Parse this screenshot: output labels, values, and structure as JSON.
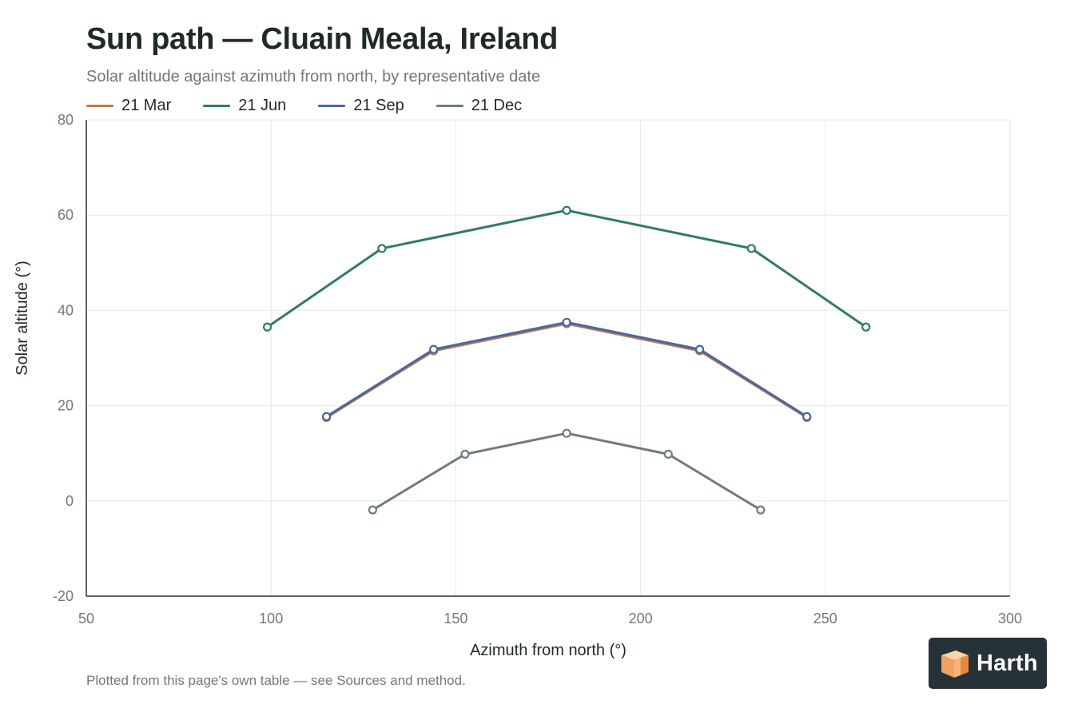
{
  "title": "Sun path — Cluain Meala, Ireland",
  "subtitle": "Solar altitude against azimuth from north, by representative date",
  "footnote": "Plotted from this page's own table — see Sources and method.",
  "logo": {
    "text": "Harth",
    "icon": "cube-logo-icon"
  },
  "colors": {
    "21 Mar": "#b87a4b",
    "21 Jun": "#2e7b6e",
    "21 Sep": "#4a67a0",
    "21 Dec": "#6f7d78"
  },
  "chart_data": {
    "type": "line",
    "xlabel": "Azimuth from north (°)",
    "ylabel": "Solar altitude (°)",
    "xlim": [
      50,
      300
    ],
    "ylim": [
      -20,
      80
    ],
    "xticks": [
      50,
      100,
      150,
      200,
      250,
      300
    ],
    "yticks": [
      -20,
      0,
      20,
      40,
      60,
      80
    ],
    "grid": true,
    "legend": "top-left",
    "series": [
      {
        "name": "21 Mar",
        "color": "#b87a4b",
        "points": [
          [
            115,
            17.5
          ],
          [
            144,
            31.5
          ],
          [
            180,
            37.2
          ],
          [
            216,
            31.5
          ],
          [
            245,
            17.5
          ]
        ]
      },
      {
        "name": "21 Jun",
        "color": "#2e7b6e",
        "points": [
          [
            99,
            36.5
          ],
          [
            130,
            53.0
          ],
          [
            180,
            61.0
          ],
          [
            230,
            53.0
          ],
          [
            261,
            36.5
          ]
        ]
      },
      {
        "name": "21 Sep",
        "color": "#4a67a0",
        "points": [
          [
            115,
            17.7
          ],
          [
            144,
            31.8
          ],
          [
            180,
            37.5
          ],
          [
            216,
            31.8
          ],
          [
            245,
            17.7
          ]
        ]
      },
      {
        "name": "21 Dec",
        "color": "#6f7d78",
        "points": [
          [
            127.5,
            -1.9
          ],
          [
            152.5,
            9.8
          ],
          [
            180,
            14.2
          ],
          [
            207.5,
            9.8
          ],
          [
            232.5,
            -1.9
          ]
        ]
      }
    ]
  }
}
